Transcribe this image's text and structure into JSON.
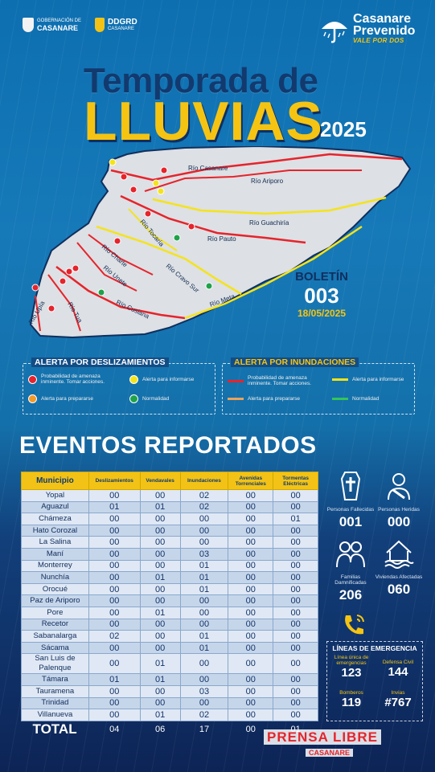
{
  "header": {
    "logo1_small": "GOBERNACIÓN DE",
    "logo1_main": "CASANARE",
    "logo2_main": "DDGRD",
    "logo2_sub": "CASANARE",
    "logo3_line1": "Casanare",
    "logo3_line2": "Prevenido",
    "logo3_tag": "VALE POR DOS"
  },
  "title": {
    "line1": "Temporada de",
    "line2": "LLUVIAS",
    "year": "2025"
  },
  "map": {
    "rivers": [
      "Río Casanare",
      "Río Ariporo",
      "Río Guachiría",
      "Río Pauto",
      "Río Tocaría",
      "Río Charte",
      "Río Cravo Sur",
      "Río Unete",
      "Río Cusiana",
      "Río Meta",
      "Río Tua",
      "Río Upía"
    ]
  },
  "bulletin": {
    "label": "BOLETÍN",
    "number": "003",
    "date": "18/05/2025"
  },
  "legend_landslides": {
    "title": "ALERTA POR DESLIZAMIENTOS",
    "items": [
      {
        "label": "Probabilidad de amenaza inminente. Tomar acciones.",
        "color": "#e5242c"
      },
      {
        "label": "Alerta para informarse",
        "color": "#f5e31a"
      },
      {
        "label": "Alerta para prepararse",
        "color": "#f39a2a"
      },
      {
        "label": "Normalidad",
        "color": "#1fa24a"
      }
    ]
  },
  "legend_floods": {
    "title": "ALERTA POR INUNDACIONES",
    "items": [
      {
        "label": "Probabilidad de amenaza inminente. Tomar acciones.",
        "color": "#e5242c"
      },
      {
        "label": "Alerta para informarse",
        "color": "#f5e31a"
      },
      {
        "label": "Alerta para prepararse",
        "color": "#e8a25b"
      },
      {
        "label": "Normalidad",
        "color": "#35c45a"
      }
    ]
  },
  "events": {
    "title": "EVENTOS REPORTADOS",
    "headers": [
      "Municipio",
      "Deslizamientos",
      "Vendavales",
      "Inundaciones",
      "Avenidas Torrenciales",
      "Tormentas Eléctricas"
    ],
    "rows": [
      [
        "Yopal",
        "00",
        "00",
        "02",
        "00",
        "00"
      ],
      [
        "Aguazul",
        "01",
        "01",
        "02",
        "00",
        "00"
      ],
      [
        "Chámeza",
        "00",
        "00",
        "00",
        "00",
        "01"
      ],
      [
        "Hato Corozal",
        "00",
        "00",
        "00",
        "00",
        "00"
      ],
      [
        "La Salina",
        "00",
        "00",
        "00",
        "00",
        "00"
      ],
      [
        "Maní",
        "00",
        "00",
        "03",
        "00",
        "00"
      ],
      [
        "Monterrey",
        "00",
        "00",
        "01",
        "00",
        "00"
      ],
      [
        "Nunchía",
        "00",
        "01",
        "01",
        "00",
        "00"
      ],
      [
        "Orocué",
        "00",
        "00",
        "01",
        "00",
        "00"
      ],
      [
        "Paz de Ariporo",
        "00",
        "00",
        "00",
        "00",
        "00"
      ],
      [
        "Pore",
        "00",
        "01",
        "00",
        "00",
        "00"
      ],
      [
        "Recetor",
        "00",
        "00",
        "00",
        "00",
        "00"
      ],
      [
        "Sabanalarga",
        "02",
        "00",
        "01",
        "00",
        "00"
      ],
      [
        "Sácama",
        "00",
        "00",
        "01",
        "00",
        "00"
      ],
      [
        "San Luis de Palenque",
        "00",
        "01",
        "00",
        "00",
        "00"
      ],
      [
        "Támara",
        "01",
        "01",
        "00",
        "00",
        "00"
      ],
      [
        "Tauramena",
        "00",
        "00",
        "03",
        "00",
        "00"
      ],
      [
        "Trinidad",
        "00",
        "00",
        "00",
        "00",
        "00"
      ],
      [
        "Villanueva",
        "00",
        "01",
        "02",
        "00",
        "00"
      ]
    ],
    "total": [
      "TOTAL",
      "04",
      "06",
      "17",
      "00",
      "01"
    ]
  },
  "stats": {
    "deaths": {
      "label": "Personas Fallecidas",
      "value": "001"
    },
    "injured": {
      "label": "Personas Heridas",
      "value": "000"
    },
    "families": {
      "label": "Familias Damnificadas",
      "value": "206"
    },
    "homes": {
      "label": "Viviendas Afectadas",
      "value": "060"
    }
  },
  "emergency": {
    "title": "LÍNEAS DE EMERGENCIA",
    "lines": [
      {
        "label": "Línea única de emergencias",
        "number": "123"
      },
      {
        "label": "Defensa Civil",
        "number": "144"
      },
      {
        "label": "Bomberos",
        "number": "119"
      },
      {
        "label": "Invias",
        "number": "#767"
      }
    ]
  },
  "watermark": {
    "text1": "PRENSA LIBRE",
    "text2": "CASANARE"
  }
}
